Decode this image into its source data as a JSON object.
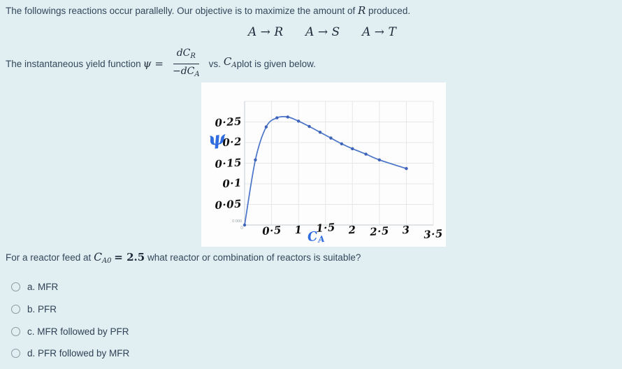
{
  "page": {
    "intro": {
      "prefix": "The followings reactions occur parallelly. Our objective is to maximize the amount of ",
      "var": "R",
      "suffix": " produced."
    },
    "reactions": [
      "A → R",
      "A → S",
      "A → T"
    ],
    "yield_line": {
      "prefix": "The instantaneous yield function ",
      "psi": "ψ",
      "equals": "=",
      "frac_num_main": "dC",
      "frac_num_sub": "R",
      "frac_den_main": "−dC",
      "frac_den_sub": "A",
      "vs": "vs.",
      "ca_main": "C",
      "ca_sub": "A",
      "suffix": " plot is given below."
    },
    "question": {
      "prefix": "For a reactor feed at ",
      "var_main": "C",
      "var_sub": "A0",
      "eq_value": "= 2.5",
      "suffix": " what reactor or combination of reactors is suitable?"
    },
    "options": [
      {
        "label": "a. MFR"
      },
      {
        "label": "b. PFR"
      },
      {
        "label": "c. MFR followed by PFR"
      },
      {
        "label": "d. PFR followed by MFR"
      }
    ]
  },
  "chart_data": {
    "type": "line",
    "title": "",
    "xlabel_main": "C",
    "xlabel_sub": "A",
    "ylabel": "ψ",
    "x": [
      0,
      0.2,
      0.4,
      0.6,
      0.8,
      1.0,
      1.2,
      1.4,
      1.6,
      1.8,
      2.0,
      2.25,
      2.5,
      3.0
    ],
    "y": [
      0,
      0.158,
      0.238,
      0.26,
      0.262,
      0.252,
      0.239,
      0.225,
      0.211,
      0.197,
      0.185,
      0.172,
      0.158,
      0.137
    ],
    "xlim": [
      0,
      3.5
    ],
    "ylim": [
      0,
      0.3
    ],
    "x_grid_step": 0.5,
    "y_grid_step": 0.05,
    "grid": true,
    "legend": "none",
    "x_ticks": [
      {
        "v": 0.5,
        "label": "0·5"
      },
      {
        "v": 1.0,
        "label": "1"
      },
      {
        "v": 1.5,
        "label": "1·5"
      },
      {
        "v": 2.0,
        "label": "2"
      },
      {
        "v": 2.5,
        "label": "2·5"
      },
      {
        "v": 3.0,
        "label": "3"
      },
      {
        "v": 3.5,
        "label": "3·5"
      }
    ],
    "y_ticks": [
      {
        "v": 0.25,
        "label": "0·25"
      },
      {
        "v": 0.2,
        "label": "0·2"
      },
      {
        "v": 0.15,
        "label": "0·15"
      },
      {
        "v": 0.1,
        "label": "0·1"
      },
      {
        "v": 0.05,
        "label": "0·05"
      }
    ],
    "origin_labels": {
      "y": "0.000",
      "x": "0"
    },
    "line_color": "#4a74c8",
    "marker_color": "#3f63b8",
    "grid_color": "#e4e7e9",
    "axis_color": "#cfd5d9"
  }
}
